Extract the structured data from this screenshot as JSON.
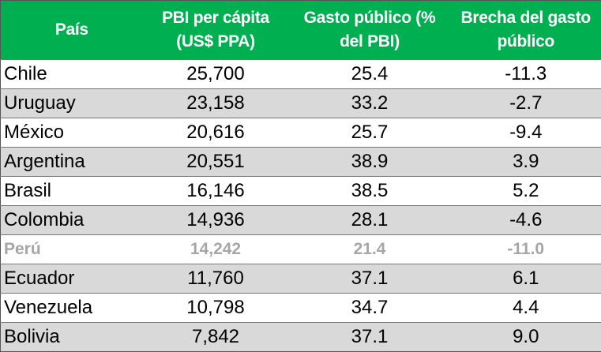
{
  "table": {
    "header": [
      "País",
      "PBI per cápita (US$ PPA)",
      "Gasto público (% del PBI)",
      "Brecha del gasto público"
    ],
    "rows": [
      [
        "Chile",
        "25,700",
        "25.4",
        "-11.3"
      ],
      [
        "Uruguay",
        "23,158",
        "33.2",
        "-2.7"
      ],
      [
        "México",
        "20,616",
        "25.7",
        "-9.4"
      ],
      [
        "Argentina",
        "20,551",
        "38.9",
        "3.9"
      ],
      [
        "Brasil",
        "16,146",
        "38.5",
        "5.2"
      ],
      [
        "Colombia",
        "14,936",
        "28.1",
        "-4.6"
      ],
      [
        "Perú",
        "14,242",
        "21.4",
        "-11.0"
      ],
      [
        "Ecuador",
        "11,760",
        "37.1",
        "6.1"
      ],
      [
        "Venezuela",
        "10,798",
        "34.7",
        "4.4"
      ],
      [
        "Bolivia",
        "7,842",
        "37.1",
        "9.0"
      ]
    ],
    "highlight_row": 6
  }
}
